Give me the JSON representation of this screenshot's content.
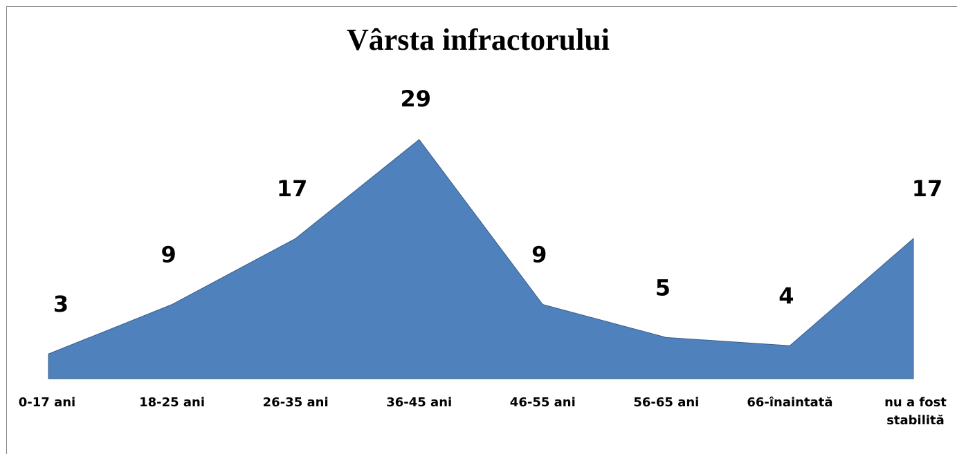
{
  "chart_data": {
    "type": "area",
    "title": "Vârsta infractorului",
    "categories": [
      "0-17 ani",
      "18-25 ani",
      "26-35 ani",
      "36-45 ani",
      "46-55 ani",
      "56-65 ani",
      "66-înaintată",
      "nu a fost stabilită"
    ],
    "values": [
      3,
      9,
      17,
      29,
      9,
      5,
      4,
      17
    ],
    "color": "#4f81bd"
  }
}
